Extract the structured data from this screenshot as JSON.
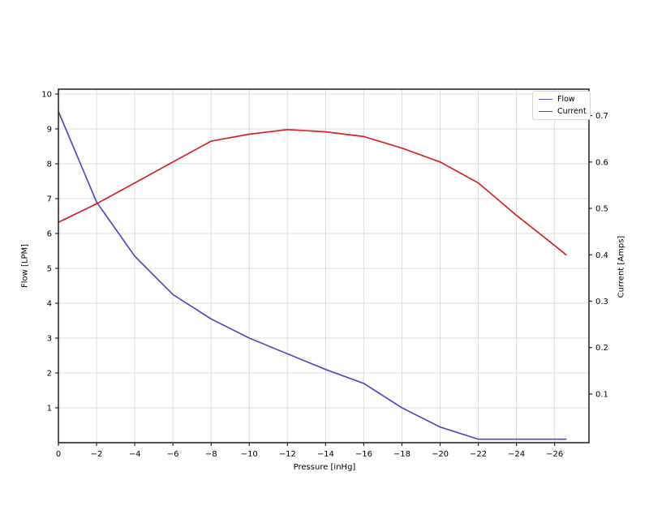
{
  "chart_data": {
    "type": "line",
    "title": "",
    "xlabel": "Pressure [inHg]",
    "ylabel_left": "Flow [LPM]",
    "ylabel_right": "Current [Amps]",
    "x": [
      0,
      -2,
      -4,
      -6,
      -8,
      -10,
      -12,
      -14,
      -16,
      -18,
      -20,
      -22,
      -24,
      -26,
      -26.6
    ],
    "series": [
      {
        "name": "Flow",
        "axis": "left",
        "color": "#544bc4",
        "values": [
          9.5,
          6.9,
          5.35,
          4.25,
          3.55,
          3.0,
          2.55,
          2.1,
          1.7,
          1.0,
          0.45,
          0.1,
          0.1,
          0.1,
          0.1
        ]
      },
      {
        "name": "Current",
        "axis": "right",
        "color": "#d42424",
        "values": [
          0.47,
          0.51,
          0.555,
          0.6,
          0.645,
          0.66,
          0.67,
          0.665,
          0.655,
          0.63,
          0.6,
          0.555,
          0.485,
          0.42,
          0.4
        ]
      }
    ],
    "xticks": [
      0,
      -2,
      -4,
      -6,
      -8,
      -10,
      -12,
      -14,
      -16,
      -18,
      -20,
      -22,
      -24,
      -26
    ],
    "yticks_left": [
      1,
      2,
      3,
      4,
      5,
      6,
      7,
      8,
      9,
      10
    ],
    "yticks_right": [
      0.1,
      0.2,
      0.3,
      0.4,
      0.5,
      0.6,
      0.7
    ],
    "xlim": [
      0,
      -27.8
    ],
    "ylim_left": [
      0,
      10.14
    ],
    "ylim_right": [
      -0.005,
      0.757
    ],
    "grid": true,
    "grid_color": "#dcdcdc",
    "spine_color": "#2a2a2a",
    "tick_label_color": "#000000",
    "legend_position": "upper right",
    "legend_entries": [
      "Flow",
      "Current"
    ]
  }
}
